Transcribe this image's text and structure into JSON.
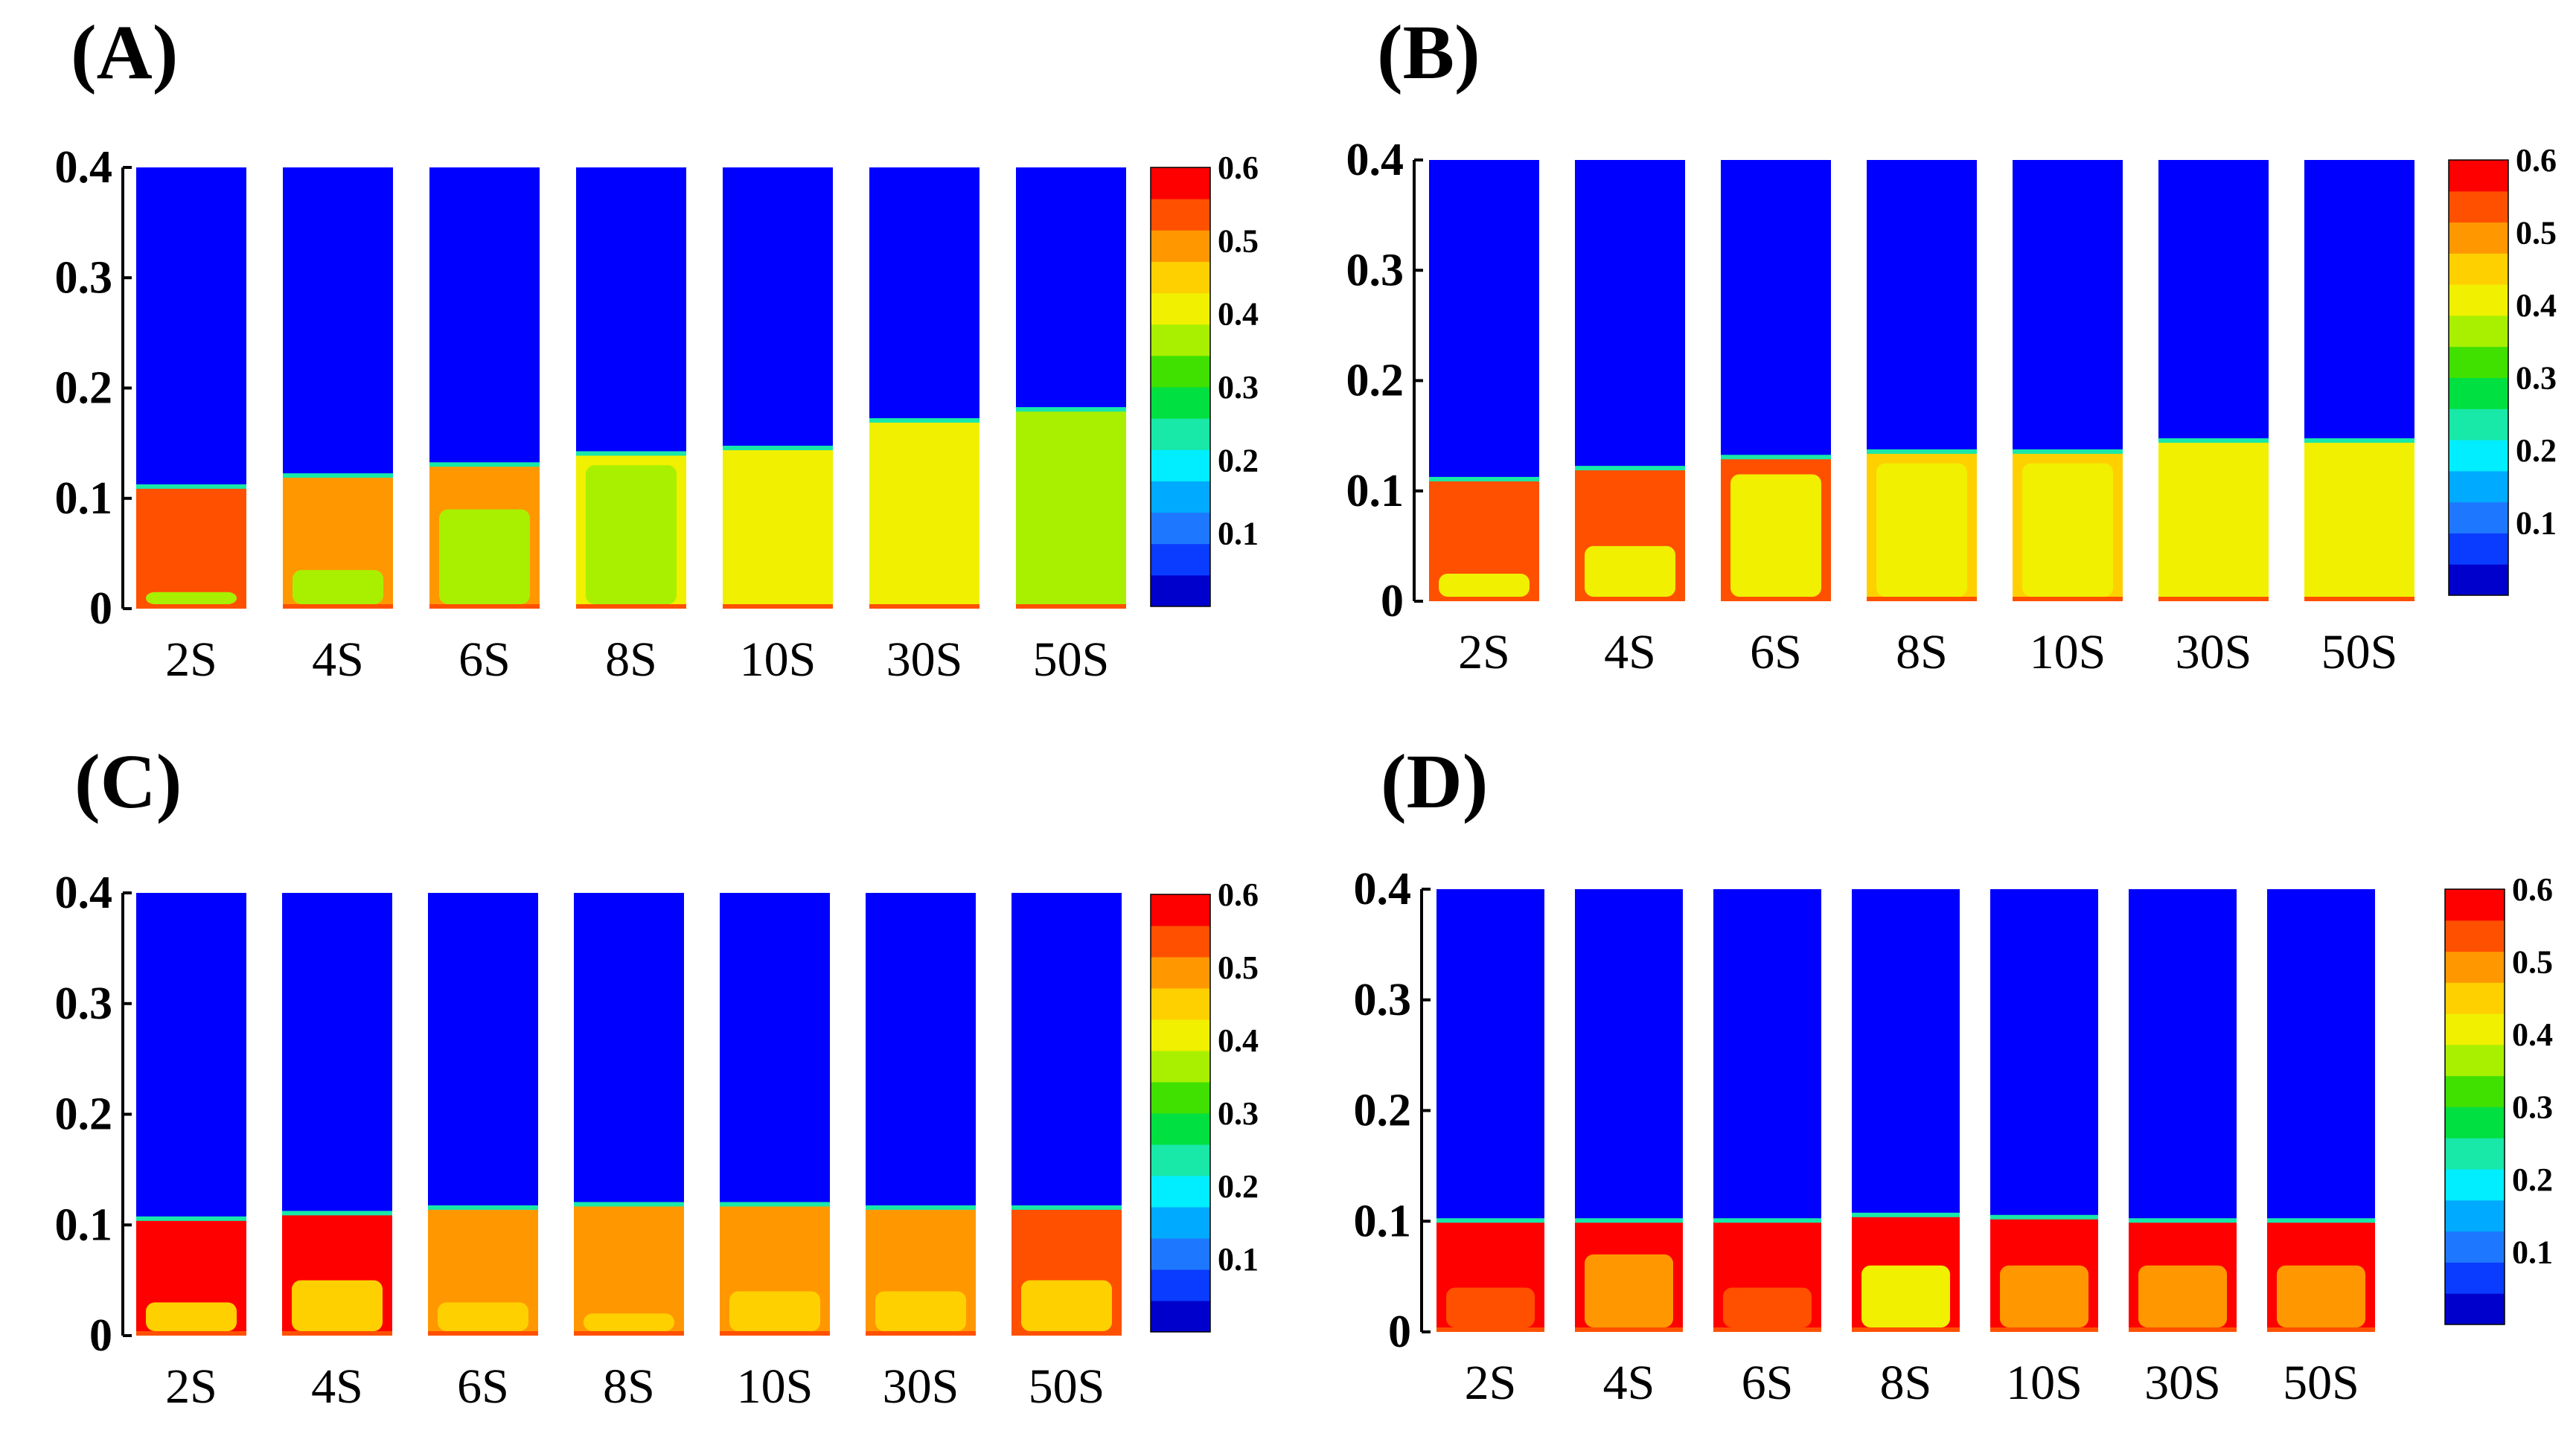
{
  "chart_data": [
    {
      "type": "heatmap",
      "panel": "(A)",
      "title": "",
      "xlabel": "",
      "ylabel": "",
      "ylim": [
        0,
        0.4
      ],
      "yticks": [
        "0",
        "0.1",
        "0.2",
        "0.3",
        "0.4"
      ],
      "categories": [
        "2S",
        "4S",
        "6S",
        "8S",
        "10S",
        "30S",
        "50S"
      ],
      "bed_height": [
        0.11,
        0.12,
        0.13,
        0.14,
        0.145,
        0.17,
        0.18
      ],
      "dominant_value": [
        0.55,
        0.5,
        0.5,
        0.4,
        0.4,
        0.4,
        0.35
      ],
      "core_height": [
        0.015,
        0.035,
        0.09,
        0.13,
        0.13,
        0.165,
        0.175
      ],
      "core_value": [
        0.35,
        0.35,
        0.35,
        0.35,
        0.4,
        0.4,
        0.35
      ],
      "colorbar": {
        "min": 0,
        "max": 0.6,
        "tick_labels": [
          "0.1",
          "0.2",
          "0.3",
          "0.4",
          "0.5",
          "0.6"
        ]
      }
    },
    {
      "type": "heatmap",
      "panel": "(B)",
      "title": "",
      "xlabel": "",
      "ylabel": "",
      "ylim": [
        0,
        0.4
      ],
      "yticks": [
        "0",
        "0.1",
        "0.2",
        "0.3",
        "0.4"
      ],
      "categories": [
        "2S",
        "4S",
        "6S",
        "8S",
        "10S",
        "30S",
        "50S"
      ],
      "bed_height": [
        0.11,
        0.12,
        0.13,
        0.135,
        0.135,
        0.145,
        0.145
      ],
      "dominant_value": [
        0.55,
        0.55,
        0.55,
        0.45,
        0.45,
        0.4,
        0.4
      ],
      "core_height": [
        0.025,
        0.05,
        0.115,
        0.125,
        0.125,
        0.14,
        0.14
      ],
      "core_value": [
        0.4,
        0.4,
        0.4,
        0.4,
        0.4,
        0.4,
        0.4
      ],
      "colorbar": {
        "min": 0,
        "max": 0.6,
        "tick_labels": [
          "0.1",
          "0.2",
          "0.3",
          "0.4",
          "0.5",
          "0.6"
        ]
      }
    },
    {
      "type": "heatmap",
      "panel": "(C)",
      "title": "",
      "xlabel": "",
      "ylabel": "",
      "ylim": [
        0,
        0.4
      ],
      "yticks": [
        "0",
        "0.1",
        "0.2",
        "0.3",
        "0.4"
      ],
      "categories": [
        "2S",
        "4S",
        "6S",
        "8S",
        "10S",
        "30S",
        "50S"
      ],
      "bed_height": [
        0.105,
        0.11,
        0.115,
        0.118,
        0.118,
        0.115,
        0.115
      ],
      "dominant_value": [
        0.6,
        0.6,
        0.5,
        0.5,
        0.5,
        0.5,
        0.55
      ],
      "core_height": [
        0.03,
        0.05,
        0.03,
        0.02,
        0.04,
        0.04,
        0.05
      ],
      "core_value": [
        0.45,
        0.45,
        0.45,
        0.45,
        0.45,
        0.45,
        0.45
      ],
      "colorbar": {
        "min": 0,
        "max": 0.6,
        "tick_labels": [
          "0.1",
          "0.2",
          "0.3",
          "0.4",
          "0.5",
          "0.6"
        ]
      }
    },
    {
      "type": "heatmap",
      "panel": "(D)",
      "title": "",
      "xlabel": "",
      "ylabel": "",
      "ylim": [
        0,
        0.4
      ],
      "yticks": [
        "0",
        "0.1",
        "0.2",
        "0.3",
        "0.4"
      ],
      "categories": [
        "2S",
        "4S",
        "6S",
        "8S",
        "10S",
        "30S",
        "50S"
      ],
      "bed_height": [
        0.1,
        0.1,
        0.1,
        0.105,
        0.103,
        0.1,
        0.1
      ],
      "dominant_value": [
        0.6,
        0.6,
        0.6,
        0.6,
        0.6,
        0.6,
        0.6
      ],
      "core_height": [
        0.04,
        0.07,
        0.04,
        0.06,
        0.06,
        0.06,
        0.06
      ],
      "core_value": [
        0.55,
        0.5,
        0.55,
        0.4,
        0.5,
        0.5,
        0.5
      ],
      "colorbar": {
        "min": 0,
        "max": 0.6,
        "tick_labels": [
          "0.1",
          "0.2",
          "0.3",
          "0.4",
          "0.5",
          "0.6"
        ]
      }
    }
  ],
  "colors": {
    "background": "#0000ff",
    "scale": [
      "#0000cc",
      "#0a3cff",
      "#1e78ff",
      "#00aaff",
      "#00eeff",
      "#18e8a8",
      "#00e040",
      "#40e000",
      "#a8f000",
      "#f0f000",
      "#ffd000",
      "#ff9800",
      "#ff5000",
      "#ff0000"
    ]
  }
}
